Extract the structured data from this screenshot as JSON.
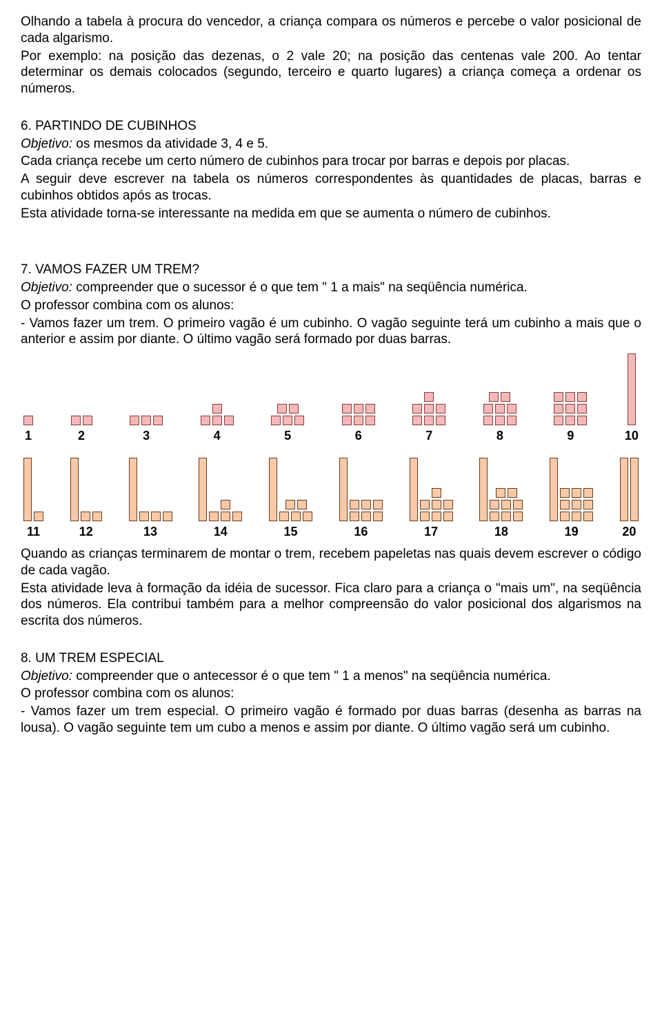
{
  "p1": "Olhando a tabela à procura do vencedor, a criança compara os números e percebe o valor posicional de cada algarismo.",
  "p2": "Por exemplo: na posição das dezenas, o 2 vale 20; na posição das centenas vale 200. Ao tentar determinar os demais colocados (segundo, terceiro e quarto lugares) a criança começa a ordenar os números.",
  "s6_title": "6. PARTINDO DE CUBINHOS",
  "s6_obj_label": "Objetivo:",
  "s6_obj_text": " os mesmos da atividade 3, 4 e 5.",
  "s6_p1": "Cada criança recebe um certo número de cubinhos para trocar por barras e depois por placas.",
  "s6_p2": "A seguir deve escrever na tabela os números correspondentes às quantidades de placas, barras e cubinhos obtidos após as trocas.",
  "s6_p3": "Esta atividade torna-se interessante na medida em que se aumenta o número de cubinhos.",
  "s7_title": "7. VAMOS FAZER UM TREM?",
  "s7_obj_label": "Objetivo:",
  "s7_obj_text": " compreender que o sucessor é o que tem \" 1 a mais\" na seqüência numérica.",
  "s7_p1": "O professor combina com os alunos:",
  "s7_p2": "- Vamos fazer um trem. O primeiro vagão é um cubinho. O vagão seguinte terá um cubinho a mais que o anterior e assim por diante. O último vagão será formado por duas barras.",
  "s7_p3": "Quando as crianças terminarem de montar o trem, recebem papeletas nas quais devem escrever o código de cada vagão.",
  "s7_p4": "Esta atividade leva à formação da idéia de sucessor. Fica claro para a criança o \"mais um\", na seqüência dos números. Ela contribui também para a melhor compreensão do valor posicional dos algarismos na escrita dos números.",
  "s8_title": "8. UM TREM ESPECIAL",
  "s8_obj_label": "Objetivo:",
  "s8_obj_text": " compreender que o antecessor é o que tem \" 1 a menos\" na seqüência numérica.",
  "s8_p1": "O professor combina com os alunos:",
  "s8_p2": "- Vamos fazer um trem especial. O primeiro vagão é formado por duas barras (desenha as barras na lousa). O vagão seguinte tem um cubo a menos e assim por diante. O último vagão será um cubinho.",
  "train_row1": [
    {
      "n": "1",
      "bars": 0,
      "cubes": 1,
      "pink": true
    },
    {
      "n": "2",
      "bars": 0,
      "cubes": 2,
      "pink": true
    },
    {
      "n": "3",
      "bars": 0,
      "cubes": 3,
      "pink": true
    },
    {
      "n": "4",
      "bars": 0,
      "cubes": 4,
      "pink": true
    },
    {
      "n": "5",
      "bars": 0,
      "cubes": 5,
      "pink": true
    },
    {
      "n": "6",
      "bars": 0,
      "cubes": 6,
      "pink": true
    },
    {
      "n": "7",
      "bars": 0,
      "cubes": 7,
      "pink": true
    },
    {
      "n": "8",
      "bars": 0,
      "cubes": 8,
      "pink": true
    },
    {
      "n": "9",
      "bars": 0,
      "cubes": 9,
      "pink": true
    },
    {
      "n": "10",
      "bars": 1,
      "cubes": 0,
      "pink": true,
      "barPink": true
    }
  ],
  "train_row2": [
    {
      "n": "11",
      "bars": 1,
      "cubes": 1
    },
    {
      "n": "12",
      "bars": 1,
      "cubes": 2
    },
    {
      "n": "13",
      "bars": 1,
      "cubes": 3
    },
    {
      "n": "14",
      "bars": 1,
      "cubes": 4
    },
    {
      "n": "15",
      "bars": 1,
      "cubes": 5
    },
    {
      "n": "16",
      "bars": 1,
      "cubes": 6
    },
    {
      "n": "17",
      "bars": 1,
      "cubes": 7
    },
    {
      "n": "18",
      "bars": 1,
      "cubes": 8
    },
    {
      "n": "19",
      "bars": 1,
      "cubes": 9
    },
    {
      "n": "20",
      "bars": 2,
      "cubes": 0
    }
  ],
  "colors": {
    "cube_fill": "#f7c9a8",
    "cube_border": "#6b3a1a",
    "pink_fill": "#f4b8b8",
    "pink_border": "#8a3a3a"
  }
}
